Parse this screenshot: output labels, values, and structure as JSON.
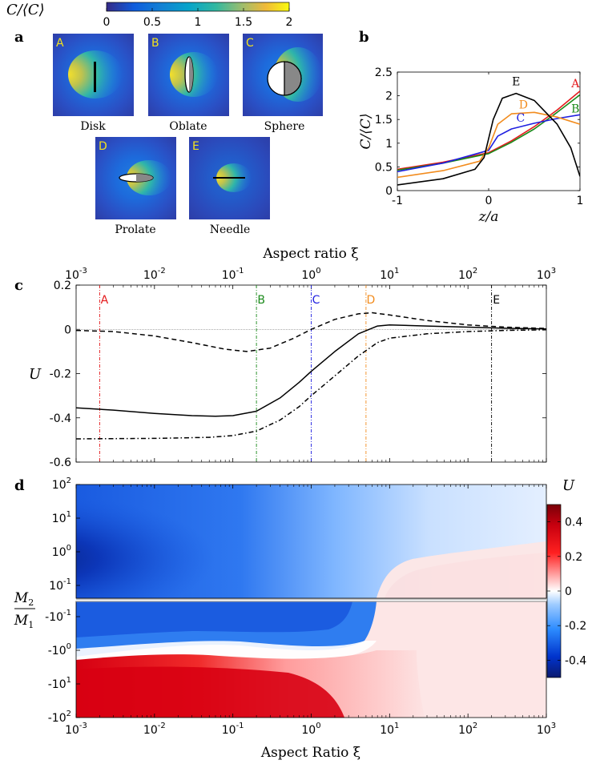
{
  "colorbar_top": {
    "label": "C/⟨C⟩",
    "ticks": [
      "0",
      "0.5",
      "1",
      "1.5",
      "2"
    ],
    "range": [
      0,
      2
    ]
  },
  "panel_a": {
    "letter": "a",
    "shapes": [
      {
        "key": "A",
        "name": "Disk"
      },
      {
        "key": "B",
        "name": "Oblate"
      },
      {
        "key": "C",
        "name": "Sphere"
      },
      {
        "key": "D",
        "name": "Prolate"
      },
      {
        "key": "E",
        "name": "Needle"
      }
    ]
  },
  "panel_b": {
    "letter": "b",
    "xlabel": "z/a",
    "ylabel": "C/⟨C⟩",
    "xticks": [
      "-1",
      "0",
      "1"
    ],
    "yticks": [
      "0",
      "0.5",
      "1",
      "1.5",
      "2",
      "2.5"
    ]
  },
  "panel_c": {
    "letter": "c",
    "top_axis_label": "Aspect ratio ξ",
    "ylabel": "U",
    "xtick_exponents": [
      "-3",
      "-2",
      "-1",
      "0",
      "1",
      "2",
      "3"
    ],
    "yticks": [
      "0.2",
      "0",
      "-0.2",
      "-0.4",
      "-0.6"
    ],
    "markers": [
      "A",
      "B",
      "C",
      "D",
      "E"
    ]
  },
  "panel_d": {
    "letter": "d",
    "xlabel": "Aspect Ratio ξ",
    "ylabel_num": "M",
    "ylabel_num_sub": "2",
    "ylabel_den": "M",
    "ylabel_den_sub": "1",
    "colorbar_label": "U",
    "colorbar_ticks": [
      "0.4",
      "0.2",
      "0",
      "-0.2",
      "-0.4"
    ],
    "top_ytick_exponents": [
      "2",
      "1",
      "0",
      "-1"
    ],
    "bottom_ytick_exponents": [
      "-1",
      "0",
      "1",
      "2"
    ],
    "xtick_exponents": [
      "-3",
      "-2",
      "-1",
      "0",
      "1",
      "2",
      "3"
    ]
  },
  "chart_data": [
    {
      "type": "line",
      "panel": "b",
      "title": "",
      "xlabel": "z/a",
      "ylabel": "C/⟨C⟩",
      "xlim": [
        -1,
        1
      ],
      "ylim": [
        0,
        2.5
      ],
      "series": [
        {
          "name": "A",
          "color": "#e41a1c",
          "x": [
            -1,
            -0.5,
            0,
            0.25,
            0.5,
            0.75,
            1
          ],
          "y": [
            0.45,
            0.6,
            0.8,
            1.05,
            1.35,
            1.7,
            2.1
          ]
        },
        {
          "name": "B",
          "color": "#1a8a1a",
          "x": [
            -1,
            -0.5,
            0,
            0.25,
            0.5,
            0.75,
            1
          ],
          "y": [
            0.43,
            0.58,
            0.78,
            1.02,
            1.3,
            1.65,
            2.02
          ]
        },
        {
          "name": "C",
          "color": "#1f1fe0",
          "x": [
            -1,
            -0.5,
            0,
            0.1,
            0.25,
            0.5,
            0.75,
            1
          ],
          "y": [
            0.4,
            0.58,
            0.85,
            1.15,
            1.3,
            1.42,
            1.52,
            1.6
          ]
        },
        {
          "name": "D",
          "color": "#f28c1e",
          "x": [
            -1,
            -0.5,
            -0.1,
            0,
            0.1,
            0.25,
            0.5,
            0.75,
            1
          ],
          "y": [
            0.28,
            0.42,
            0.62,
            0.9,
            1.4,
            1.62,
            1.65,
            1.55,
            1.4
          ]
        },
        {
          "name": "E",
          "color": "#000000",
          "x": [
            -1,
            -0.5,
            -0.15,
            -0.05,
            0,
            0.05,
            0.15,
            0.3,
            0.5,
            0.75,
            0.9,
            1
          ],
          "y": [
            0.12,
            0.25,
            0.45,
            0.7,
            1.1,
            1.5,
            1.95,
            2.05,
            1.9,
            1.4,
            0.9,
            0.3
          ]
        }
      ],
      "annotations": [
        "A",
        "B",
        "C",
        "D",
        "E"
      ]
    },
    {
      "type": "line",
      "panel": "c",
      "title": "",
      "xlabel": "Aspect ratio ξ",
      "xscale": "log",
      "ylabel": "U",
      "xlim": [
        0.001,
        1000
      ],
      "ylim": [
        -0.6,
        0.2
      ],
      "series": [
        {
          "name": "solid",
          "style": "solid",
          "x": [
            0.001,
            0.003,
            0.01,
            0.03,
            0.06,
            0.1,
            0.2,
            0.4,
            0.7,
            1,
            2,
            4,
            7,
            10,
            30,
            100,
            300,
            1000
          ],
          "y": [
            -0.355,
            -0.365,
            -0.38,
            -0.39,
            -0.393,
            -0.39,
            -0.37,
            -0.31,
            -0.24,
            -0.19,
            -0.1,
            -0.02,
            0.015,
            0.02,
            0.015,
            0.01,
            0.005,
            0.002
          ]
        },
        {
          "name": "dashed",
          "style": "dashed",
          "x": [
            0.001,
            0.003,
            0.01,
            0.03,
            0.08,
            0.15,
            0.3,
            0.6,
            1,
            2,
            4,
            6,
            10,
            30,
            100,
            300,
            1000
          ],
          "y": [
            -0.005,
            -0.01,
            -0.03,
            -0.06,
            -0.09,
            -0.1,
            -0.085,
            -0.04,
            0.0,
            0.045,
            0.07,
            0.075,
            0.065,
            0.04,
            0.02,
            0.01,
            0.004
          ]
        },
        {
          "name": "dash-dot",
          "style": "dashdot",
          "x": [
            0.001,
            0.01,
            0.05,
            0.1,
            0.2,
            0.4,
            0.7,
            1,
            2,
            4,
            7,
            10,
            30,
            100,
            300,
            1000
          ],
          "y": [
            -0.495,
            -0.493,
            -0.488,
            -0.48,
            -0.46,
            -0.41,
            -0.35,
            -0.3,
            -0.21,
            -0.12,
            -0.06,
            -0.04,
            -0.02,
            -0.01,
            -0.005,
            -0.002
          ]
        }
      ],
      "vertical_markers": [
        {
          "label": "A",
          "x": 0.002,
          "color": "#e41a1c"
        },
        {
          "label": "B",
          "x": 0.2,
          "color": "#1a8a1a"
        },
        {
          "label": "C",
          "x": 1,
          "color": "#1f1fe0"
        },
        {
          "label": "D",
          "x": 5,
          "color": "#f28c1e"
        },
        {
          "label": "E",
          "x": 200,
          "color": "#000000"
        }
      ]
    },
    {
      "type": "heatmap",
      "panel": "d",
      "title": "",
      "xlabel": "Aspect Ratio ξ",
      "xscale": "log",
      "xlim": [
        0.001,
        1000
      ],
      "ylabel": "M2/M1",
      "yscale": "symlog",
      "ylim": [
        -100,
        100
      ],
      "colorbar": {
        "label": "U",
        "range": [
          -0.5,
          0.5
        ]
      },
      "regions": [
        {
          "description": "M2/M1 ≈ 1, small aspect ratio",
          "value": -0.48
        },
        {
          "description": "M2/M1 ≈ -10 to -100, small aspect ratio",
          "value": 0.45
        },
        {
          "description": "large aspect ratio",
          "value": 0.05
        }
      ]
    }
  ]
}
